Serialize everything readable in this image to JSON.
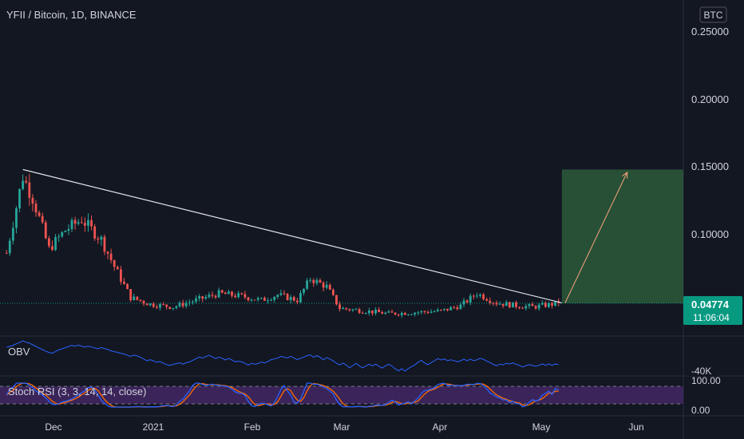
{
  "header": {
    "symbol": "YFII / Bitcoin, 1D, BINANCE",
    "currency_badge": "BTC"
  },
  "price_axis": {
    "ticks": [
      "0.25000",
      "0.20000",
      "0.15000",
      "0.10000"
    ],
    "current_price": "0.04774",
    "countdown": "11:06:04"
  },
  "time_axis": {
    "labels": [
      "Dec",
      "2021",
      "Feb",
      "Mar",
      "Apr",
      "May",
      "Jun"
    ]
  },
  "obv": {
    "title": "OBV",
    "tick": "-40K"
  },
  "stoch_rsi": {
    "title": "Stoch RSI (3, 3, 14, 14, close)",
    "ticks": [
      "100.00",
      "0.00"
    ]
  },
  "colors": {
    "background": "#131722",
    "up": "#26a69a",
    "down": "#ef5350",
    "target_zone": "#2b5a3a",
    "badge": "#089981",
    "obv_line": "#2962ff",
    "stoch_k": "#2962ff",
    "stoch_d": "#ff6d00",
    "stoch_band": "#4a2a6e"
  },
  "chart_data": {
    "type": "candlestick",
    "title": "YFII / Bitcoin, 1D, BINANCE",
    "y_unit": "BTC",
    "ylim": [
      0.02,
      0.27
    ],
    "x_range": [
      "2020-11-13",
      "2021-06-11"
    ],
    "last_price": 0.04774,
    "price_anchors": [
      {
        "date": "2020-11-15",
        "close": 0.085
      },
      {
        "date": "2020-11-20",
        "close": 0.142
      },
      {
        "date": "2020-11-23",
        "close": 0.126
      },
      {
        "date": "2020-11-28",
        "close": 0.088
      },
      {
        "date": "2020-12-03",
        "close": 0.102
      },
      {
        "date": "2020-12-08",
        "close": 0.11
      },
      {
        "date": "2020-12-14",
        "close": 0.095
      },
      {
        "date": "2020-12-18",
        "close": 0.075
      },
      {
        "date": "2020-12-23",
        "close": 0.052
      },
      {
        "date": "2020-12-29",
        "close": 0.047
      },
      {
        "date": "2021-01-05",
        "close": 0.045
      },
      {
        "date": "2021-01-12",
        "close": 0.05
      },
      {
        "date": "2021-01-19",
        "close": 0.055
      },
      {
        "date": "2021-01-26",
        "close": 0.053
      },
      {
        "date": "2021-02-01",
        "close": 0.05
      },
      {
        "date": "2021-02-06",
        "close": 0.054
      },
      {
        "date": "2021-02-12",
        "close": 0.05
      },
      {
        "date": "2021-02-16",
        "close": 0.066
      },
      {
        "date": "2021-02-21",
        "close": 0.06
      },
      {
        "date": "2021-02-25",
        "close": 0.044
      },
      {
        "date": "2021-03-05",
        "close": 0.042
      },
      {
        "date": "2021-03-12",
        "close": 0.04
      },
      {
        "date": "2021-03-20",
        "close": 0.041
      },
      {
        "date": "2021-03-28",
        "close": 0.042
      },
      {
        "date": "2021-04-03",
        "close": 0.046
      },
      {
        "date": "2021-04-08",
        "close": 0.055
      },
      {
        "date": "2021-04-14",
        "close": 0.048
      },
      {
        "date": "2021-04-20",
        "close": 0.046
      },
      {
        "date": "2021-04-25",
        "close": 0.045
      },
      {
        "date": "2021-05-03",
        "close": 0.0477
      }
    ],
    "trendline": {
      "start": {
        "date": "2020-11-20",
        "price": 0.147
      },
      "end": {
        "date": "2021-05-04",
        "price": 0.048
      }
    },
    "projection": {
      "zone_from": "2021-05-04",
      "zone_to": "2021-06-11",
      "zone_low": 0.0477,
      "zone_high": 0.147,
      "arrow_from": {
        "date": "2021-05-05",
        "price": 0.048
      },
      "arrow_to": {
        "date": "2021-05-24",
        "price": 0.145
      }
    },
    "indicators": {
      "obv": {
        "name": "OBV",
        "tick_label": "-40K"
      },
      "stoch_rsi": {
        "name": "Stoch RSI (3, 3, 14, 14, close)",
        "range": [
          0,
          100
        ]
      }
    }
  }
}
